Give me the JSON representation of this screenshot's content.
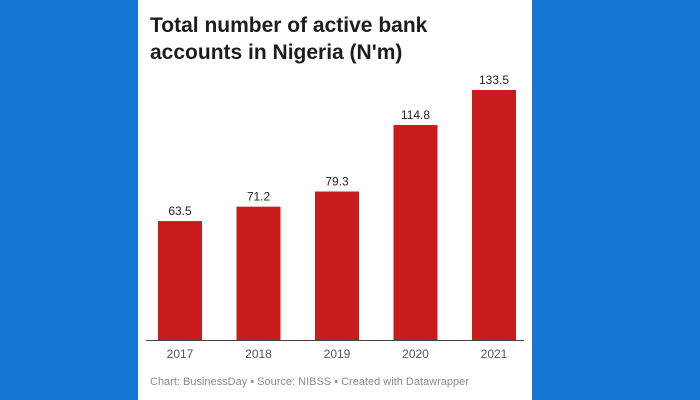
{
  "chart_data": {
    "type": "bar",
    "title": "Total number of active bank accounts in Nigeria (N'm)",
    "categories": [
      "2017",
      "2018",
      "2019",
      "2020",
      "2021"
    ],
    "values": [
      63.5,
      71.2,
      79.3,
      114.8,
      133.5
    ],
    "ylim": [
      0,
      133.5
    ],
    "grid": false,
    "legend": "none",
    "bar_color": "#c81c1c"
  },
  "footer": "Chart: BusinessDay • Source: NIBSS • Created with Datawrapper",
  "colors": {
    "background": "#1677d2",
    "card": "#ffffff",
    "bar": "#c81c1c"
  }
}
